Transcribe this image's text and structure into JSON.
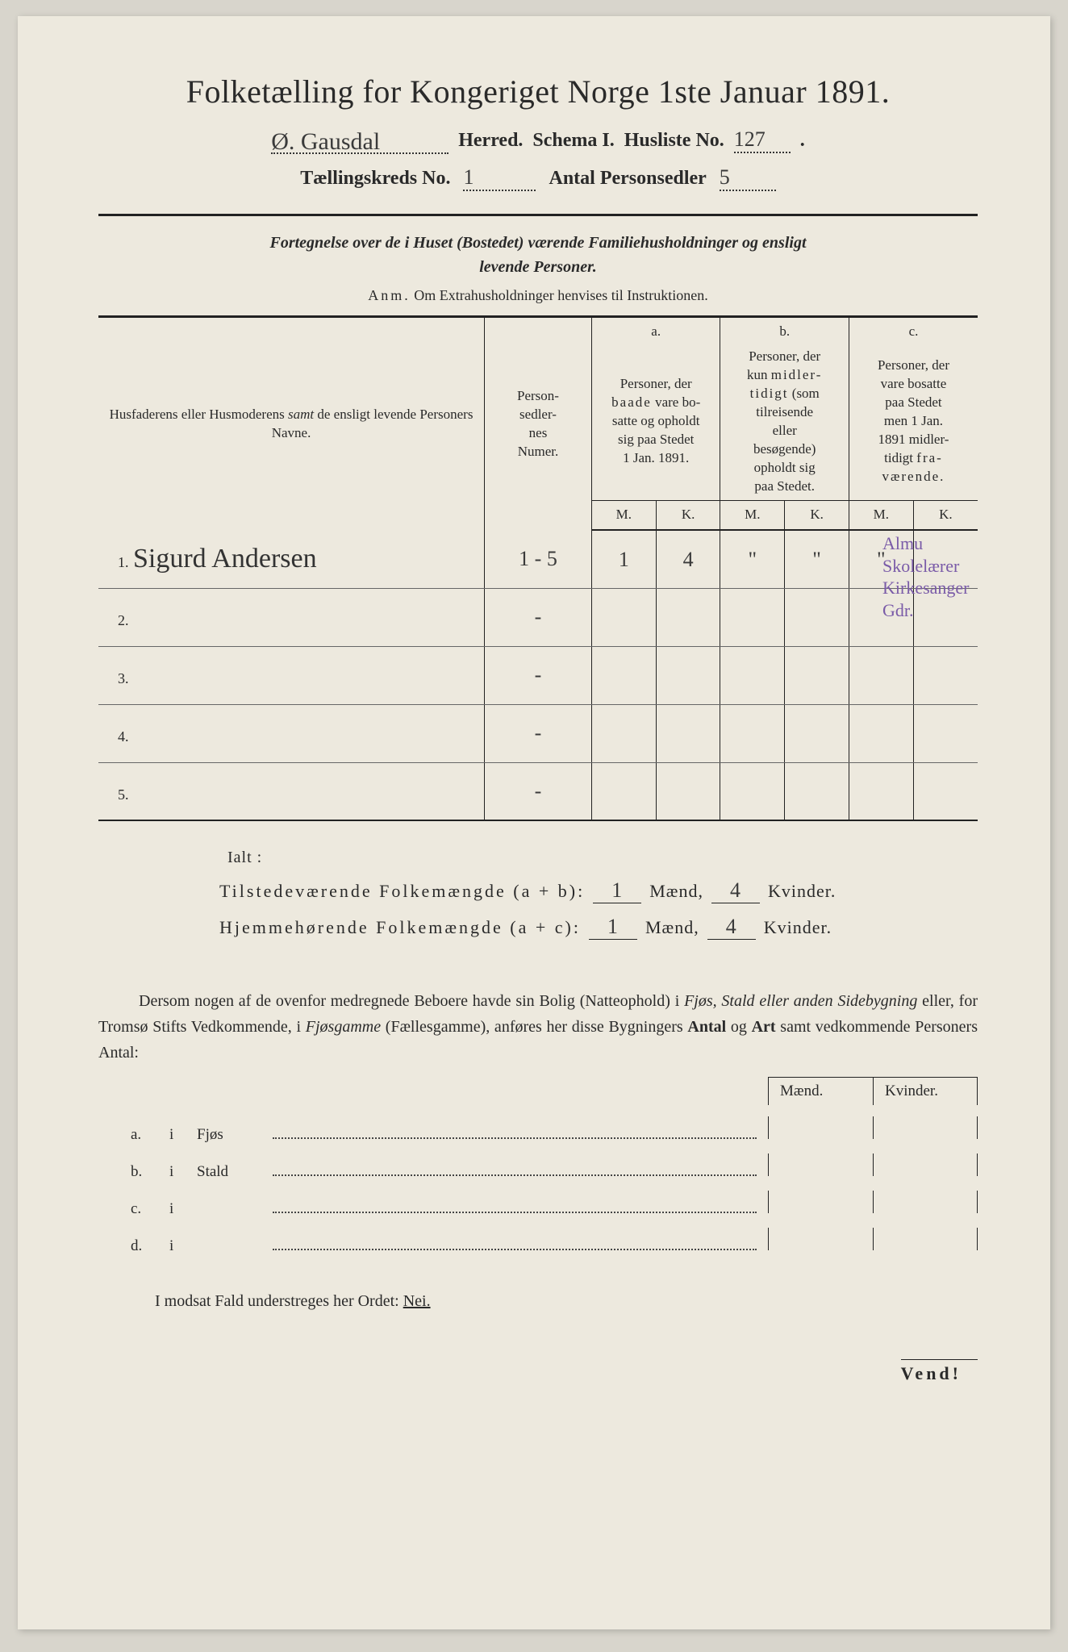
{
  "header": {
    "title": "Folketælling for Kongeriget Norge 1ste Januar 1891.",
    "herred_hand": "Ø. Gausdal",
    "herred_label": "Herred.",
    "schema_label": "Schema I.",
    "husliste_label": "Husliste No.",
    "husliste_no": "127",
    "kreds_label": "Tællingskreds No.",
    "kreds_no": "1",
    "antal_label": "Antal Personsedler",
    "antal_no": "5"
  },
  "intro": {
    "line1": "Fortegnelse over de i Huset (Bostedet) værende Familiehusholdninger og ensligt",
    "line2": "levende Personer.",
    "anm_label": "Anm.",
    "anm_text": "Om Extrahusholdninger henvises til Instruktionen."
  },
  "table": {
    "col_name": "Husfaderens eller Husmoderens samt de ensligt levende Personers Navne.",
    "col_num": "Person-sedler-nes Numer.",
    "a_label": "a.",
    "a_text": "Personer, der baade vare bosatte og opholdt sig paa Stedet 1 Jan. 1891.",
    "b_label": "b.",
    "b_text": "Personer, der kun midlertidigt (som tilreisende eller besøgende) opholdt sig paa Stedet.",
    "c_label": "c.",
    "c_text": "Personer, der vare bosatte paa Stedet men 1 Jan. 1891 midlertidigt fraværende.",
    "m": "M.",
    "k": "K.",
    "rows": [
      {
        "num": "1.",
        "name": "Sigurd Andersen",
        "sedler": "1 - 5",
        "am": "1",
        "ak": "4",
        "bm": "\"",
        "bk": "\"",
        "cm": "\"",
        "ck": ""
      },
      {
        "num": "2.",
        "name": "",
        "sedler": "-",
        "am": "",
        "ak": "",
        "bm": "",
        "bk": "",
        "cm": "",
        "ck": ""
      },
      {
        "num": "3.",
        "name": "",
        "sedler": "-",
        "am": "",
        "ak": "",
        "bm": "",
        "bk": "",
        "cm": "",
        "ck": ""
      },
      {
        "num": "4.",
        "name": "",
        "sedler": "-",
        "am": "",
        "ak": "",
        "bm": "",
        "bk": "",
        "cm": "",
        "ck": ""
      },
      {
        "num": "5.",
        "name": "",
        "sedler": "-",
        "am": "",
        "ak": "",
        "bm": "",
        "bk": "",
        "cm": "",
        "ck": ""
      }
    ],
    "annotation": "Almu, Skolelærer, Kirkesanger Gdr."
  },
  "totals": {
    "ialt": "Ialt :",
    "t1_label": "Tilstedeværende Folkemængde (a + b):",
    "t2_label": "Hjemmehørende Folkemængde (a + c):",
    "maend": "Mænd,",
    "kvinder": "Kvinder.",
    "t1_m": "1",
    "t1_k": "4",
    "t2_m": "1",
    "t2_k": "4"
  },
  "para": "Dersom nogen af de ovenfor medregnede Beboere havde sin Bolig (Natteophold) i Fjøs, Stald eller anden Sidebygning eller, for Tromsø Stifts Vedkommende, i Fjøsgamme (Fællesgamme), anføres her disse Bygningers Antal og Art samt vedkommende Personers Antal:",
  "mk": {
    "m": "Mænd.",
    "k": "Kvinder."
  },
  "bldg": [
    {
      "a": "a.",
      "i": "i",
      "n": "Fjøs"
    },
    {
      "a": "b.",
      "i": "i",
      "n": "Stald"
    },
    {
      "a": "c.",
      "i": "i",
      "n": ""
    },
    {
      "a": "d.",
      "i": "i",
      "n": ""
    }
  ],
  "nei": {
    "pre": "I modsat Fald understreges her Ordet: ",
    "word": "Nei."
  },
  "vend": "Vend!",
  "colors": {
    "paper": "#ede9de",
    "ink": "#2a2a2a",
    "purple": "#7a5ba8"
  }
}
